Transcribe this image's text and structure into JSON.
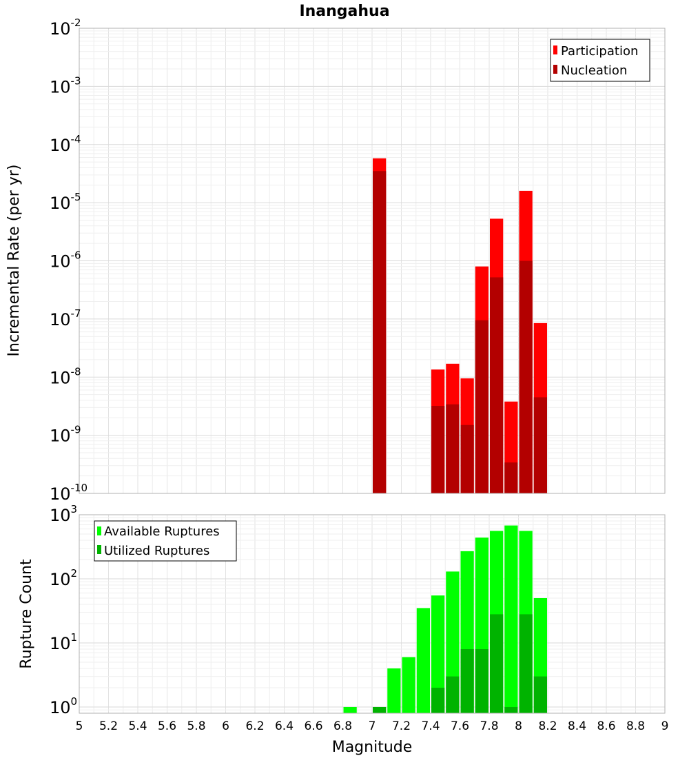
{
  "chart_data": [
    {
      "type": "bar",
      "title": "Inangahua",
      "xlabel": "",
      "ylabel": "Incremental Rate (per yr)",
      "yscale": "log",
      "ylim": [
        1e-10,
        0.01
      ],
      "xlim": [
        5,
        9
      ],
      "grid": true,
      "legend_position": "top-right",
      "bar_width": 0.1,
      "series": [
        {
          "name": "Participation",
          "color": "#ff0000",
          "points": [
            {
              "x": 7.05,
              "y": 5.8e-05
            },
            {
              "x": 7.45,
              "y": 1.35e-08
            },
            {
              "x": 7.55,
              "y": 1.7e-08
            },
            {
              "x": 7.65,
              "y": 9.5e-09
            },
            {
              "x": 7.75,
              "y": 8e-07
            },
            {
              "x": 7.85,
              "y": 5.3e-06
            },
            {
              "x": 7.95,
              "y": 3.8e-09
            },
            {
              "x": 8.05,
              "y": 1.6e-05
            },
            {
              "x": 8.15,
              "y": 8.5e-08
            }
          ]
        },
        {
          "name": "Nucleation",
          "color": "#b30000",
          "points": [
            {
              "x": 7.05,
              "y": 3.5e-05
            },
            {
              "x": 7.45,
              "y": 3.2e-09
            },
            {
              "x": 7.55,
              "y": 3.4e-09
            },
            {
              "x": 7.65,
              "y": 1.5e-09
            },
            {
              "x": 7.75,
              "y": 9.5e-08
            },
            {
              "x": 7.85,
              "y": 5.2e-07
            },
            {
              "x": 7.95,
              "y": 3.4e-10
            },
            {
              "x": 8.05,
              "y": 1e-06
            },
            {
              "x": 8.15,
              "y": 4.5e-09
            }
          ]
        }
      ],
      "y_ticks": [
        {
          "base": "10",
          "exp": "-10"
        },
        {
          "base": "10",
          "exp": "-9"
        },
        {
          "base": "10",
          "exp": "-8"
        },
        {
          "base": "10",
          "exp": "-7"
        },
        {
          "base": "10",
          "exp": "-6"
        },
        {
          "base": "10",
          "exp": "-5"
        },
        {
          "base": "10",
          "exp": "-4"
        },
        {
          "base": "10",
          "exp": "-3"
        },
        {
          "base": "10",
          "exp": "-2"
        }
      ]
    },
    {
      "type": "bar",
      "title": "",
      "xlabel": "Magnitude",
      "ylabel": "Rupture Count",
      "yscale": "log",
      "ylim": [
        0.8,
        1000
      ],
      "xlim": [
        5,
        9
      ],
      "grid": true,
      "legend_position": "top-left",
      "bar_width": 0.1,
      "series": [
        {
          "name": "Available Ruptures",
          "color": "#00ff00",
          "points": [
            {
              "x": 6.85,
              "y": 1
            },
            {
              "x": 7.05,
              "y": 1
            },
            {
              "x": 7.15,
              "y": 4
            },
            {
              "x": 7.25,
              "y": 6
            },
            {
              "x": 7.35,
              "y": 35
            },
            {
              "x": 7.45,
              "y": 55
            },
            {
              "x": 7.55,
              "y": 130
            },
            {
              "x": 7.65,
              "y": 270
            },
            {
              "x": 7.75,
              "y": 440
            },
            {
              "x": 7.85,
              "y": 560
            },
            {
              "x": 7.95,
              "y": 680
            },
            {
              "x": 8.05,
              "y": 560
            },
            {
              "x": 8.15,
              "y": 50
            }
          ]
        },
        {
          "name": "Utilized Ruptures",
          "color": "#00b300",
          "points": [
            {
              "x": 7.05,
              "y": 1
            },
            {
              "x": 7.45,
              "y": 2
            },
            {
              "x": 7.55,
              "y": 3
            },
            {
              "x": 7.65,
              "y": 8
            },
            {
              "x": 7.75,
              "y": 8
            },
            {
              "x": 7.85,
              "y": 28
            },
            {
              "x": 7.95,
              "y": 1
            },
            {
              "x": 8.05,
              "y": 28
            },
            {
              "x": 8.15,
              "y": 3
            }
          ]
        }
      ],
      "y_ticks": [
        {
          "base": "10",
          "exp": "0"
        },
        {
          "base": "10",
          "exp": "1"
        },
        {
          "base": "10",
          "exp": "2"
        },
        {
          "base": "10",
          "exp": "3"
        }
      ],
      "x_ticks": [
        "5",
        "5.2",
        "5.4",
        "5.6",
        "5.8",
        "6",
        "6.2",
        "6.4",
        "6.6",
        "6.8",
        "7",
        "7.2",
        "7.4",
        "7.6",
        "7.8",
        "8",
        "8.2",
        "8.4",
        "8.6",
        "8.8",
        "9"
      ]
    }
  ]
}
